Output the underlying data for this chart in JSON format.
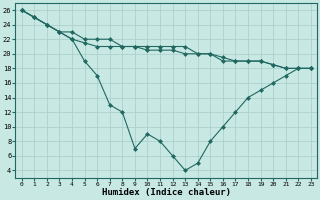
{
  "xlabel": "Humidex (Indice chaleur)",
  "xlim": [
    -0.5,
    23.5
  ],
  "ylim": [
    3,
    27
  ],
  "yticks": [
    4,
    6,
    8,
    10,
    12,
    14,
    16,
    18,
    20,
    22,
    24,
    26
  ],
  "xticks": [
    0,
    1,
    2,
    3,
    4,
    5,
    6,
    7,
    8,
    9,
    10,
    11,
    12,
    13,
    14,
    15,
    16,
    17,
    18,
    19,
    20,
    21,
    22,
    23
  ],
  "bg_color": "#c8e8e4",
  "grid_color": "#a8ccc8",
  "line_color": "#206860",
  "line1_x": [
    0,
    1,
    2,
    3,
    4,
    5,
    6,
    7,
    8,
    9,
    10,
    11,
    12,
    13,
    14,
    15,
    16,
    17,
    18,
    19,
    20,
    21,
    22,
    23
  ],
  "line1_y": [
    26,
    25,
    24,
    23,
    22,
    21.5,
    21,
    21,
    21,
    21,
    20.5,
    20.5,
    20.5,
    20,
    20,
    20,
    19.5,
    19,
    19,
    19,
    18.5,
    18,
    18,
    18
  ],
  "line2_x": [
    0,
    1,
    2,
    3,
    4,
    5,
    6,
    7,
    8,
    9,
    10,
    11,
    12,
    13,
    14,
    15,
    16,
    17,
    18,
    19,
    20,
    21,
    22,
    23
  ],
  "line2_y": [
    26,
    25,
    24,
    23,
    23,
    22,
    22,
    22,
    21,
    21,
    21,
    21,
    21,
    21,
    20,
    20,
    19,
    19,
    19,
    19,
    18.5,
    18,
    18,
    18
  ],
  "line3_x": [
    0,
    1,
    2,
    3,
    4,
    5,
    6,
    7,
    8,
    9,
    10,
    11,
    12,
    13,
    14,
    15,
    16,
    17,
    18,
    19,
    20,
    21,
    22,
    23
  ],
  "line3_y": [
    26,
    25,
    24,
    23,
    22,
    19,
    17,
    13,
    12,
    7,
    9,
    8,
    6,
    4,
    5,
    8,
    10,
    12,
    14,
    15,
    16,
    17,
    18,
    18
  ]
}
